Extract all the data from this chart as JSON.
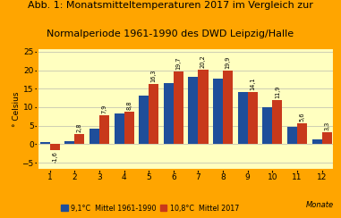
{
  "title_line1": "Abb. 1: Monatsmitteltemperaturen 2017 im Vergleich zur",
  "title_line2": "Normalperiode 1961-1990 des DWD Leipzig/Halle",
  "blue_values": [
    0.6,
    0.9,
    4.1,
    8.2,
    13.2,
    16.5,
    18.2,
    17.6,
    14.2,
    10.0,
    4.6,
    1.3
  ],
  "red_values": [
    -1.6,
    2.8,
    7.9,
    8.8,
    16.3,
    19.7,
    20.2,
    19.9,
    14.1,
    11.9,
    5.6,
    3.3
  ],
  "red_labels": [
    "-1,6",
    "2,8",
    "7,9",
    "8,8",
    "16,3",
    "19,7",
    "20,2",
    "19,9",
    "14,1",
    "11,9",
    "5,6",
    "3,3"
  ],
  "months": [
    1,
    2,
    3,
    4,
    5,
    6,
    7,
    8,
    9,
    10,
    11,
    12
  ],
  "blue_color": "#1F4E9A",
  "red_color": "#C8391B",
  "background_outer": "#FFA500",
  "background_inner": "#FFFFC0",
  "ylabel": "° Celsius",
  "xlabel": "Monate",
  "ylim": [
    -7,
    26
  ],
  "yticks": [
    -5,
    0,
    5,
    10,
    15,
    20,
    25
  ],
  "legend_blue": "9,1°C  Mittel 1961-1990",
  "legend_red": "10,8°C  Mittel 2017",
  "title_fontsize": 8.0,
  "bar_width": 0.4
}
